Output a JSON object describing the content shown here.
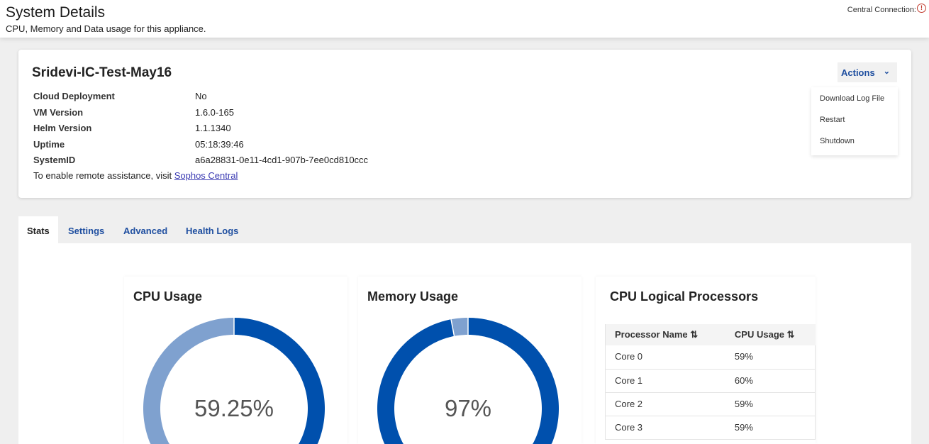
{
  "header": {
    "title": "System Details",
    "subtitle": "CPU, Memory and Data usage for this appliance.",
    "central_connection": "Central Connection:",
    "connection_icon": "alert-circle-icon",
    "connection_color": "#c0392b"
  },
  "appliance": {
    "name": "Sridevi-IC-Test-May16",
    "details": [
      {
        "label": "Cloud Deployment",
        "value": "No"
      },
      {
        "label": "VM Version",
        "value": "1.6.0-165"
      },
      {
        "label": "Helm Version",
        "value": "1.1.1340"
      },
      {
        "label": "Uptime",
        "value": "05:18:39:46"
      },
      {
        "label": "SystemID",
        "value": "a6a28831-0e11-4cd1-907b-7ee0cd810ccc"
      }
    ],
    "remote_text": "To enable remote assistance, visit ",
    "remote_link": "Sophos Central"
  },
  "actions": {
    "label": "Actions",
    "menu": [
      "Download Log File",
      "Restart",
      "Shutdown"
    ]
  },
  "tabs": [
    "Stats",
    "Settings",
    "Advanced",
    "Health Logs"
  ],
  "active_tab": "Stats",
  "chart_data": [
    {
      "type": "pie",
      "title": "CPU Usage",
      "center_label": "59.25%",
      "values": [
        59.25,
        40.75
      ],
      "colors": [
        "#0050ad",
        "#7fa1cf"
      ]
    },
    {
      "type": "pie",
      "title": "Memory Usage",
      "center_label": "97%",
      "values": [
        97,
        3
      ],
      "colors": [
        "#0050ad",
        "#7fa1cf"
      ]
    }
  ],
  "processors": {
    "title": "CPU Logical Processors",
    "columns": [
      "Processor Name",
      "CPU Usage"
    ],
    "sort_icon": "sort-icon",
    "rows": [
      [
        "Core 0",
        "59%"
      ],
      [
        "Core 1",
        "60%"
      ],
      [
        "Core 2",
        "59%"
      ],
      [
        "Core 3",
        "59%"
      ]
    ]
  }
}
